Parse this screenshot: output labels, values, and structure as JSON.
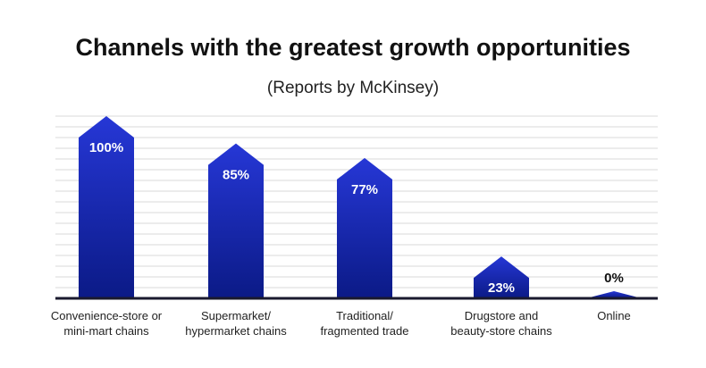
{
  "title": "Channels with the greatest growth opportunities",
  "subtitle": "(Reports by McKinsey)",
  "chart_data": {
    "type": "bar",
    "title": "Channels with the greatest growth opportunities",
    "subtitle": "(Reports by McKinsey)",
    "categories": [
      "Convenience-store or\nmini-mart chains",
      "Supermarket/\nhypermarket chains",
      "Traditional/\nfragmented trade",
      "Drugstore and\nbeauty-store chains",
      "Online"
    ],
    "values": [
      100,
      85,
      77,
      23,
      0
    ],
    "data_labels": [
      "100%",
      "85%",
      "77%",
      "23%",
      "0%"
    ],
    "ylim": [
      0,
      100
    ],
    "grid": true,
    "legend": "none",
    "colors": {
      "bar_top": "#2637d6",
      "bar_bottom": "#0b1a86",
      "axis": "#1a1a2e",
      "grid": "#d9d9d9"
    }
  }
}
